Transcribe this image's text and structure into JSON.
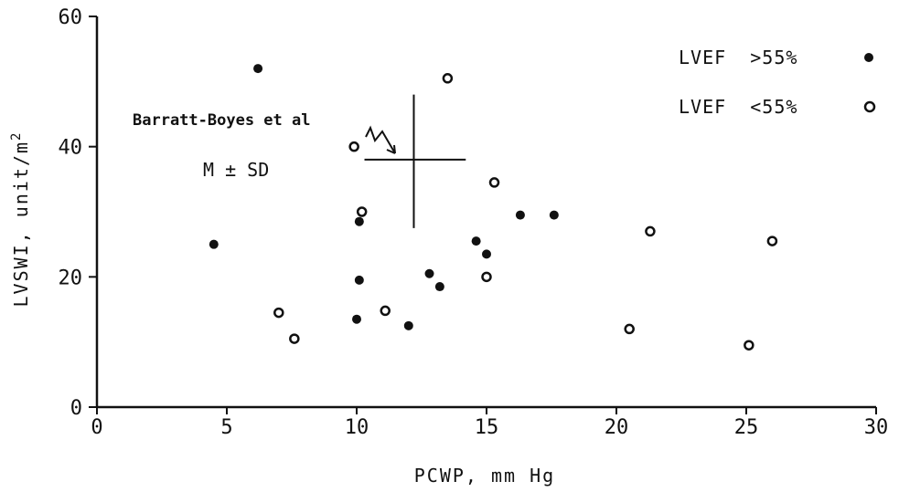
{
  "chart_data": {
    "type": "scatter",
    "xlabel": "PCWP, mm Hg",
    "ylabel": "LVSWI, unit/m",
    "ylabel_superscript": "2",
    "xlim": [
      0,
      30
    ],
    "ylim": [
      0,
      60
    ],
    "x_ticks": [
      "0",
      "5",
      "10",
      "15",
      "20",
      "25",
      "30"
    ],
    "y_ticks": [
      "0",
      "20",
      "40",
      "60"
    ],
    "grid": false,
    "legend": {
      "position": "top-right",
      "entries": [
        {
          "label": "LVEF  >55%",
          "marker": "filled-circle"
        },
        {
          "label": "LVEF  <55%",
          "marker": "open-circle"
        }
      ]
    },
    "series": [
      {
        "name": "LVEF  >55%",
        "marker": "filled",
        "points": [
          {
            "x": 4.5,
            "y": 25
          },
          {
            "x": 6.2,
            "y": 52
          },
          {
            "x": 10.1,
            "y": 28.5
          },
          {
            "x": 10.1,
            "y": 19.5
          },
          {
            "x": 10.0,
            "y": 13.5
          },
          {
            "x": 12.0,
            "y": 12.5
          },
          {
            "x": 12.8,
            "y": 20.5
          },
          {
            "x": 13.2,
            "y": 18.5
          },
          {
            "x": 14.6,
            "y": 25.5
          },
          {
            "x": 15.0,
            "y": 23.5
          },
          {
            "x": 16.3,
            "y": 29.5
          },
          {
            "x": 17.6,
            "y": 29.5
          }
        ]
      },
      {
        "name": "LVEF  <55%",
        "marker": "open",
        "points": [
          {
            "x": 7.0,
            "y": 14.5
          },
          {
            "x": 7.6,
            "y": 10.5
          },
          {
            "x": 9.9,
            "y": 40.0
          },
          {
            "x": 10.2,
            "y": 30.0
          },
          {
            "x": 11.1,
            "y": 14.8
          },
          {
            "x": 13.5,
            "y": 50.5
          },
          {
            "x": 15.0,
            "y": 20.0
          },
          {
            "x": 15.3,
            "y": 34.5
          },
          {
            "x": 20.5,
            "y": 12.0
          },
          {
            "x": 21.3,
            "y": 27.0
          },
          {
            "x": 25.1,
            "y": 9.5
          },
          {
            "x": 26.0,
            "y": 25.5
          }
        ]
      }
    ],
    "reference": {
      "label": "Barratt-Boyes et al",
      "sublabel": "M ± SD",
      "mean_x": 12.2,
      "mean_y": 38,
      "x_range": [
        10.3,
        14.2
      ],
      "y_range": [
        27.5,
        48
      ]
    }
  }
}
